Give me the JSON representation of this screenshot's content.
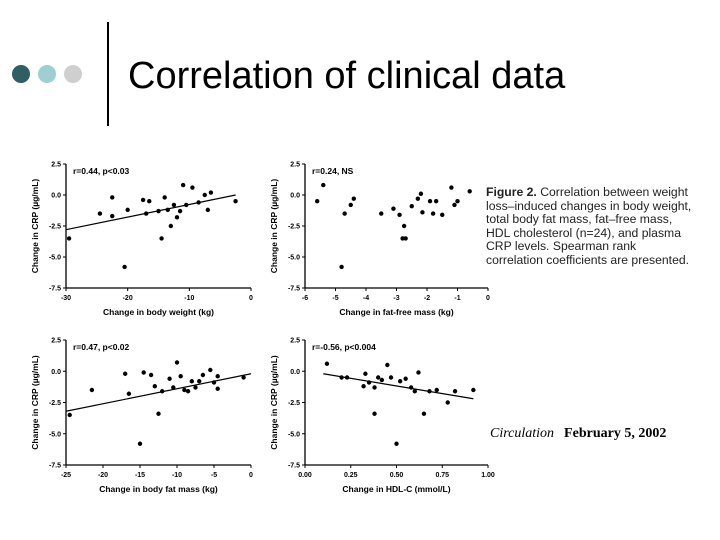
{
  "slide": {
    "title": "Correlation of clinical data",
    "bullet_colors": [
      "#2f5f62",
      "#9ed0d3",
      "#cfcfcf"
    ]
  },
  "caption": {
    "label": "Figure 2.",
    "text": "Correlation between weight loss–induced changes in body weight, total body fat mass, fat–free mass, HDL cholesterol (n=24), and plasma CRP levels. Spearman rank correlation coefficients are presented."
  },
  "journal": {
    "name": "Circulation",
    "date": "February 5, 2002"
  },
  "chart_data": [
    {
      "type": "scatter",
      "annotation": "r=0.44, p<0.03",
      "xlabel": "Change in body weight (kg)",
      "ylabel": "Change in CRP (µg/mL)",
      "xlim": [
        -30,
        0
      ],
      "ylim": [
        -7.5,
        2.5
      ],
      "xticks": [
        -30,
        -20,
        -10,
        0
      ],
      "xticklabels": [
        "-30",
        "-20",
        "-10",
        "0"
      ],
      "yticks": [
        2.5,
        0,
        -2.5,
        -5,
        -7.5
      ],
      "yticklabels": [
        "2.5",
        "0.0",
        "-2.5",
        "-5.0",
        "-7.5"
      ],
      "points": [
        [
          -29.5,
          -3.5
        ],
        [
          -24.5,
          -1.5
        ],
        [
          -22.5,
          -1.7
        ],
        [
          -22.5,
          -0.2
        ],
        [
          -20.5,
          -5.8
        ],
        [
          -20.0,
          -1.2
        ],
        [
          -17.5,
          -0.4
        ],
        [
          -17.0,
          -1.5
        ],
        [
          -16.5,
          -0.5
        ],
        [
          -15.0,
          -1.3
        ],
        [
          -14.5,
          -3.5
        ],
        [
          -14.0,
          -0.2
        ],
        [
          -13.5,
          -1.2
        ],
        [
          -13.0,
          -2.5
        ],
        [
          -12.5,
          -0.8
        ],
        [
          -12.0,
          -1.8
        ],
        [
          -11.5,
          -1.3
        ],
        [
          -11.0,
          0.8
        ],
        [
          -10.5,
          -0.8
        ],
        [
          -9.5,
          0.6
        ],
        [
          -8.5,
          -0.6
        ],
        [
          -7.5,
          0.0
        ],
        [
          -7.0,
          -1.2
        ],
        [
          -6.5,
          0.2
        ],
        [
          -2.5,
          -0.5
        ]
      ],
      "trendline": [
        [
          -30,
          -2.8
        ],
        [
          -2.5,
          0.0
        ]
      ]
    },
    {
      "type": "scatter",
      "annotation": "r=0.24, NS",
      "xlabel": "Change in fat-free mass (kg)",
      "ylabel": "Change in CRP (µg/mL)",
      "xlim": [
        -6,
        0
      ],
      "ylim": [
        -7.5,
        2.5
      ],
      "xticks": [
        -6,
        -5,
        -4,
        -3,
        -2,
        -1,
        0
      ],
      "xticklabels": [
        "-6",
        "-5",
        "-4",
        "-3",
        "-2",
        "-1",
        "0"
      ],
      "yticks": [
        2.5,
        0,
        -2.5,
        -5,
        -7.5
      ],
      "yticklabels": [
        "2.5",
        "0.0",
        "-2.5",
        "-5.0",
        "-7.5"
      ],
      "points": [
        [
          -5.6,
          -0.5
        ],
        [
          -5.4,
          0.8
        ],
        [
          -4.8,
          -5.8
        ],
        [
          -4.7,
          -1.5
        ],
        [
          -4.5,
          -0.8
        ],
        [
          -4.4,
          -0.3
        ],
        [
          -3.5,
          -1.5
        ],
        [
          -3.1,
          -1.1
        ],
        [
          -2.9,
          -1.6
        ],
        [
          -2.8,
          -3.5
        ],
        [
          -2.75,
          -2.5
        ],
        [
          -2.7,
          -3.5
        ],
        [
          -2.5,
          -0.9
        ],
        [
          -2.3,
          -0.3
        ],
        [
          -2.2,
          0.1
        ],
        [
          -2.15,
          -1.4
        ],
        [
          -1.9,
          -0.5
        ],
        [
          -1.8,
          -1.5
        ],
        [
          -1.7,
          -0.5
        ],
        [
          -1.5,
          -1.6
        ],
        [
          -1.2,
          0.6
        ],
        [
          -1.1,
          -0.8
        ],
        [
          -1.0,
          -0.5
        ],
        [
          -0.6,
          0.3
        ]
      ],
      "trendline": []
    },
    {
      "type": "scatter",
      "annotation": "r=0.47, p<0.02",
      "xlabel": "Change in body fat mass (kg)",
      "ylabel": "Change in CRP (µg/mL)",
      "xlim": [
        -25,
        0
      ],
      "ylim": [
        -7.5,
        2.5
      ],
      "xticks": [
        -25,
        -20,
        -15,
        -10,
        -5,
        0
      ],
      "xticklabels": [
        "-25",
        "-20",
        "-15",
        "-10",
        "-5",
        "0"
      ],
      "yticks": [
        2.5,
        0,
        -2.5,
        -5,
        -7.5
      ],
      "yticklabels": [
        "2.5",
        "0.0",
        "-2.5",
        "-5.0",
        "-7.5"
      ],
      "points": [
        [
          -24.5,
          -3.5
        ],
        [
          -21.5,
          -1.5
        ],
        [
          -17.0,
          -0.2
        ],
        [
          -16.5,
          -1.8
        ],
        [
          -15.0,
          -5.8
        ],
        [
          -14.5,
          -0.1
        ],
        [
          -13.5,
          -0.3
        ],
        [
          -13.0,
          -1.2
        ],
        [
          -12.5,
          -3.4
        ],
        [
          -12.0,
          -1.6
        ],
        [
          -11.0,
          -0.6
        ],
        [
          -10.5,
          -1.3
        ],
        [
          -10.0,
          0.7
        ],
        [
          -9.5,
          -0.4
        ],
        [
          -9.0,
          -1.5
        ],
        [
          -8.5,
          -1.6
        ],
        [
          -8.0,
          -0.8
        ],
        [
          -7.5,
          -1.3
        ],
        [
          -7.0,
          -0.8
        ],
        [
          -6.5,
          -0.3
        ],
        [
          -5.5,
          0.1
        ],
        [
          -5.0,
          -0.9
        ],
        [
          -4.5,
          -1.4
        ],
        [
          -4.5,
          -0.4
        ],
        [
          -1.0,
          -0.5
        ]
      ],
      "trendline": [
        [
          -25,
          -3.2
        ],
        [
          0,
          -0.2
        ]
      ]
    },
    {
      "type": "scatter",
      "annotation": "r=-0.56, p<0.004",
      "xlabel": "Change in HDL-C (mmol/L)",
      "ylabel": "Change in CRP (µg/mL)",
      "xlim": [
        0,
        1
      ],
      "ylim": [
        -7.5,
        2.5
      ],
      "xticks": [
        0,
        0.25,
        0.5,
        0.75,
        1
      ],
      "xticklabels": [
        "0.00",
        "0.25",
        "0.50",
        "0.75",
        "1.00"
      ],
      "yticks": [
        2.5,
        0,
        -2.5,
        -5,
        -7.5
      ],
      "yticklabels": [
        "2.5",
        "0.0",
        "-2.5",
        "-5.0",
        "-7.5"
      ],
      "points": [
        [
          0.12,
          0.6
        ],
        [
          0.2,
          -0.5
        ],
        [
          0.23,
          -0.5
        ],
        [
          0.32,
          -1.2
        ],
        [
          0.33,
          -0.2
        ],
        [
          0.35,
          -0.9
        ],
        [
          0.38,
          -3.4
        ],
        [
          0.38,
          -1.3
        ],
        [
          0.4,
          -0.5
        ],
        [
          0.42,
          -0.7
        ],
        [
          0.45,
          0.5
        ],
        [
          0.47,
          -0.5
        ],
        [
          0.5,
          -5.8
        ],
        [
          0.52,
          -0.8
        ],
        [
          0.55,
          -0.6
        ],
        [
          0.58,
          -1.3
        ],
        [
          0.6,
          -1.6
        ],
        [
          0.62,
          -0.1
        ],
        [
          0.65,
          -3.4
        ],
        [
          0.68,
          -1.6
        ],
        [
          0.72,
          -1.5
        ],
        [
          0.78,
          -2.5
        ],
        [
          0.82,
          -1.6
        ],
        [
          0.92,
          -1.5
        ]
      ],
      "trendline": [
        [
          0.1,
          -0.2
        ],
        [
          0.92,
          -2.2
        ]
      ]
    }
  ]
}
